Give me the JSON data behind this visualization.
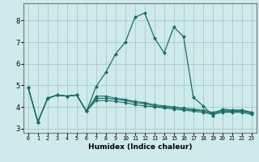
{
  "xlabel": "Humidex (Indice chaleur)",
  "ylabel": "",
  "bg_color": "#ceeaea",
  "grid_color": "#aacece",
  "line_color": "#1a6e6a",
  "marker_color": "#1a6e6a",
  "xlim": [
    -0.5,
    23.5
  ],
  "ylim": [
    2.8,
    8.8
  ],
  "yticks": [
    3,
    4,
    5,
    6,
    7,
    8
  ],
  "xtick_labels": [
    "0",
    "1",
    "2",
    "3",
    "4",
    "5",
    "6",
    "7",
    "8",
    "9",
    "10",
    "11",
    "12",
    "13",
    "14",
    "15",
    "16",
    "17",
    "18",
    "19",
    "20",
    "21",
    "22",
    "23"
  ],
  "lines": [
    [
      4.9,
      3.3,
      4.4,
      4.55,
      4.5,
      4.55,
      3.8,
      4.95,
      5.6,
      6.45,
      7.0,
      8.15,
      8.35,
      7.2,
      6.5,
      7.7,
      7.25,
      4.45,
      4.05,
      3.6,
      3.9,
      3.85,
      3.85,
      3.75
    ],
    [
      4.9,
      3.3,
      4.4,
      4.55,
      4.5,
      4.55,
      3.8,
      4.5,
      4.5,
      4.4,
      4.35,
      4.25,
      4.2,
      4.1,
      4.05,
      4.0,
      3.95,
      3.9,
      3.85,
      3.75,
      3.85,
      3.85,
      3.85,
      3.75
    ],
    [
      4.9,
      3.3,
      4.4,
      4.55,
      4.5,
      4.55,
      3.8,
      4.4,
      4.4,
      4.35,
      4.3,
      4.2,
      4.15,
      4.05,
      4.0,
      3.95,
      3.9,
      3.85,
      3.8,
      3.7,
      3.8,
      3.8,
      3.8,
      3.7
    ],
    [
      4.9,
      3.3,
      4.4,
      4.55,
      4.5,
      4.55,
      3.8,
      4.3,
      4.3,
      4.25,
      4.2,
      4.1,
      4.05,
      4.0,
      3.95,
      3.9,
      3.85,
      3.8,
      3.75,
      3.65,
      3.75,
      3.75,
      3.75,
      3.65
    ]
  ]
}
